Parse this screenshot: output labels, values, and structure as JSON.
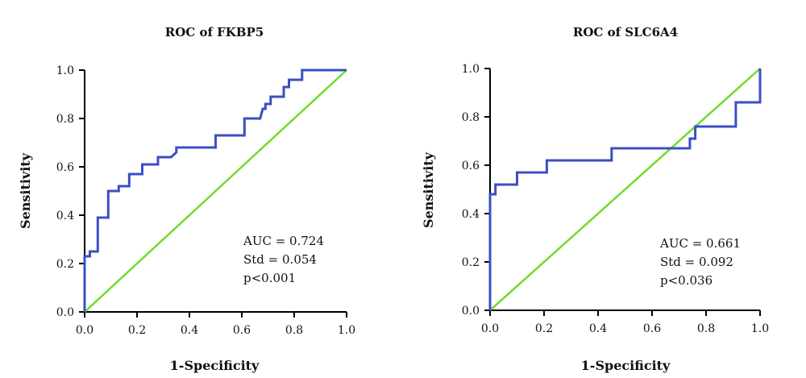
{
  "chart_data": [
    {
      "type": "line",
      "title": "ROC of FKBP5",
      "xlabel": "1-Specificity",
      "ylabel": "Sensitivity",
      "xlim": [
        0,
        1
      ],
      "ylim": [
        0,
        1
      ],
      "xticks": [
        "0.0",
        "0.2",
        "0.4",
        "0.6",
        "0.8",
        "1.0"
      ],
      "yticks": [
        "0.0",
        "0.2",
        "0.4",
        "0.6",
        "0.8",
        "1.0"
      ],
      "grid": false,
      "annotations": [
        "AUC = 0.724",
        "Std = 0.054",
        "p<0.001"
      ],
      "series": [
        {
          "color": "#3a4fc4",
          "x": [
            0,
            0,
            0.02,
            0.02,
            0.05,
            0.05,
            0.09,
            0.09,
            0.13,
            0.13,
            0.17,
            0.17,
            0.22,
            0.22,
            0.28,
            0.28,
            0.33,
            0.35,
            0.35,
            0.5,
            0.5,
            0.61,
            0.61,
            0.67,
            0.68,
            0.69,
            0.69,
            0.71,
            0.71,
            0.76,
            0.76,
            0.78,
            0.78,
            0.83,
            0.83,
            1.0
          ],
          "y": [
            0,
            0.23,
            0.23,
            0.25,
            0.25,
            0.39,
            0.39,
            0.5,
            0.5,
            0.52,
            0.52,
            0.57,
            0.57,
            0.61,
            0.61,
            0.64,
            0.64,
            0.66,
            0.68,
            0.68,
            0.73,
            0.73,
            0.8,
            0.8,
            0.84,
            0.84,
            0.86,
            0.86,
            0.89,
            0.89,
            0.93,
            0.93,
            0.96,
            0.96,
            1.0,
            1.0
          ]
        },
        {
          "color": "#6fdc2c",
          "x": [
            0,
            1
          ],
          "y": [
            0,
            1
          ]
        }
      ]
    },
    {
      "type": "line",
      "title": "ROC of SLC6A4",
      "xlabel": "1-Specificity",
      "ylabel": "Sensitivity",
      "xlim": [
        0,
        1
      ],
      "ylim": [
        0,
        1
      ],
      "xticks": [
        "0.0",
        "0.2",
        "0.4",
        "0.6",
        "0.8",
        "1.0"
      ],
      "yticks": [
        "0.0",
        "0.2",
        "0.4",
        "0.6",
        "0.8",
        "1.0"
      ],
      "grid": false,
      "annotations": [
        "AUC = 0.661",
        "Std = 0.092",
        "p<0.036"
      ],
      "series": [
        {
          "color": "#3a4fc4",
          "x": [
            0,
            0,
            0.02,
            0.02,
            0.1,
            0.1,
            0.21,
            0.21,
            0.45,
            0.45,
            0.74,
            0.74,
            0.76,
            0.76,
            0.91,
            0.91,
            1.0,
            1.0
          ],
          "y": [
            0,
            0.48,
            0.48,
            0.52,
            0.52,
            0.57,
            0.57,
            0.62,
            0.62,
            0.67,
            0.67,
            0.71,
            0.71,
            0.76,
            0.76,
            0.86,
            0.86,
            1.0
          ]
        },
        {
          "color": "#6fdc2c",
          "x": [
            0,
            1
          ],
          "y": [
            0,
            1
          ]
        }
      ]
    }
  ]
}
